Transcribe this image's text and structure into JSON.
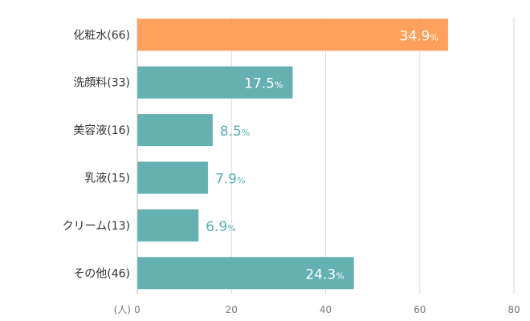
{
  "chart_data": {
    "type": "bar",
    "orientation": "horizontal",
    "categories": [
      "化粧水(66)",
      "洗顔料(33)",
      "美容液(16)",
      "乳液(15)",
      "クリーム(13)",
      "その他(46)"
    ],
    "values": [
      66,
      33,
      16,
      15,
      13,
      46
    ],
    "data_labels": [
      {
        "number": "34.9",
        "unit": "%"
      },
      {
        "number": "17.5",
        "unit": "%"
      },
      {
        "number": "8.5",
        "unit": "%"
      },
      {
        "number": "7.9",
        "unit": "%"
      },
      {
        "number": "6.9",
        "unit": "%"
      },
      {
        "number": "24.3",
        "unit": "%"
      }
    ],
    "x_unit": "(人)",
    "xlim": [
      0,
      80
    ],
    "x_ticks": [
      "0",
      "20",
      "40",
      "60",
      "80"
    ],
    "grid": true,
    "legend": "none",
    "colors": {
      "highlight": "#ffa05c",
      "bar": "#65b0b1",
      "label_inside": "#ffffff",
      "label_outside": "#5aafb1",
      "grid": "#dcdcdc",
      "axis": "#b8b8b8",
      "category_text": "#333333",
      "tick_text": "#777777"
    },
    "highlight_index": 0
  }
}
